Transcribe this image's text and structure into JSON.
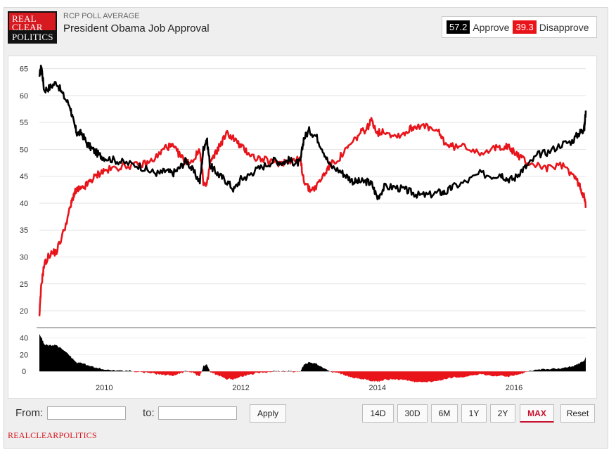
{
  "header": {
    "logo": {
      "line1": "REAL",
      "line2": "CLEAR",
      "line3": "POLITICS"
    },
    "subtitle": "RCP POLL AVERAGE",
    "title": "President Obama Job Approval"
  },
  "legend": {
    "approve_value": "57.2",
    "approve_label": "Approve",
    "disapprove_value": "39.3",
    "disapprove_label": "Disapprove"
  },
  "colors": {
    "approve": "#000000",
    "disapprove": "#e8141a"
  },
  "controls": {
    "from_label": "From:",
    "to_label": "to:",
    "apply_label": "Apply",
    "ranges": [
      "14D",
      "30D",
      "6M",
      "1Y",
      "2Y",
      "MAX"
    ],
    "active_range": "MAX",
    "reset_label": "Reset"
  },
  "footer": {
    "brand": "REALCLEARPOLITICS"
  },
  "chart_data": {
    "type": "line",
    "x_tick_labels": [
      "2010",
      "2012",
      "2014",
      "2016"
    ],
    "x_range": [
      2009.05,
      2017.05
    ],
    "main_panel": {
      "ylim": [
        17,
        66
      ],
      "y_ticks": [
        20,
        25,
        30,
        35,
        40,
        45,
        50,
        55,
        60,
        65
      ],
      "grid": true
    },
    "spread_panel": {
      "ylim": [
        -4,
        43
      ],
      "y_ticks": [
        0,
        20,
        40
      ],
      "type": "area"
    },
    "series": [
      {
        "key": "approve",
        "x": [
          2009.05,
          2009.08,
          2009.12,
          2009.2,
          2009.3,
          2009.4,
          2009.5,
          2009.55,
          2009.6,
          2009.67,
          2009.75,
          2009.83,
          2009.92,
          2010.0,
          2010.15,
          2010.3,
          2010.5,
          2010.65,
          2010.8,
          2010.9,
          2011.0,
          2011.1,
          2011.2,
          2011.3,
          2011.4,
          2011.45,
          2011.5,
          2011.55,
          2011.62,
          2011.7,
          2011.8,
          2011.9,
          2012.0,
          2012.1,
          2012.2,
          2012.35,
          2012.5,
          2012.6,
          2012.7,
          2012.8,
          2012.87,
          2012.92,
          2013.0,
          2013.1,
          2013.2,
          2013.3,
          2013.45,
          2013.55,
          2013.65,
          2013.75,
          2013.85,
          2013.92,
          2014.0,
          2014.1,
          2014.25,
          2014.4,
          2014.5,
          2014.6,
          2014.75,
          2014.9,
          2015.0,
          2015.1,
          2015.3,
          2015.5,
          2015.7,
          2015.8,
          2015.9,
          2016.0,
          2016.1,
          2016.2,
          2016.35,
          2016.5,
          2016.7,
          2016.85,
          2016.95,
          2017.0,
          2017.03,
          2017.05
        ],
        "values": [
          63.5,
          65.5,
          61,
          61.5,
          62.5,
          60,
          58,
          55,
          53,
          53,
          51,
          50,
          49,
          48.5,
          48,
          47.5,
          47,
          46,
          45.5,
          46,
          45.5,
          46.5,
          48,
          46,
          44,
          50,
          52,
          47,
          46,
          45,
          44,
          42.5,
          44.5,
          45,
          46,
          47,
          48,
          47.5,
          48,
          47.5,
          47.5,
          52,
          53.5,
          52.5,
          50,
          47,
          46,
          45,
          44,
          44,
          44,
          43.5,
          41,
          43,
          43,
          42.5,
          42,
          41.5,
          41.5,
          42,
          42,
          43,
          44,
          45.5,
          45,
          45.5,
          44.5,
          44.5,
          46,
          47,
          49,
          49.5,
          51,
          51.5,
          53,
          53.5,
          54,
          57.2
        ]
      },
      {
        "key": "disapprove",
        "x": [
          2009.05,
          2009.08,
          2009.12,
          2009.2,
          2009.3,
          2009.4,
          2009.5,
          2009.55,
          2009.6,
          2009.67,
          2009.75,
          2009.83,
          2009.92,
          2010.0,
          2010.15,
          2010.3,
          2010.5,
          2010.65,
          2010.8,
          2010.9,
          2011.0,
          2011.1,
          2011.2,
          2011.3,
          2011.4,
          2011.45,
          2011.5,
          2011.55,
          2011.62,
          2011.7,
          2011.8,
          2011.9,
          2012.0,
          2012.1,
          2012.2,
          2012.35,
          2012.5,
          2012.6,
          2012.7,
          2012.8,
          2012.87,
          2012.92,
          2013.0,
          2013.1,
          2013.2,
          2013.3,
          2013.45,
          2013.55,
          2013.65,
          2013.75,
          2013.85,
          2013.92,
          2014.0,
          2014.1,
          2014.25,
          2014.4,
          2014.5,
          2014.6,
          2014.75,
          2014.9,
          2015.0,
          2015.1,
          2015.3,
          2015.5,
          2015.7,
          2015.8,
          2015.9,
          2016.0,
          2016.1,
          2016.2,
          2016.35,
          2016.5,
          2016.7,
          2016.85,
          2016.95,
          2017.0,
          2017.03,
          2017.05
        ],
        "values": [
          19,
          25,
          28.5,
          30.5,
          31,
          34.5,
          39,
          41.5,
          42.5,
          42.5,
          43.5,
          44.5,
          45.5,
          46,
          46.5,
          47,
          47,
          47.5,
          49,
          50.5,
          50.5,
          49,
          47.5,
          48,
          50,
          44,
          43,
          47.5,
          49,
          51,
          53,
          52,
          50.5,
          49.5,
          48.5,
          48,
          47.5,
          47.5,
          48,
          48,
          48,
          44.5,
          42.5,
          43,
          45,
          47,
          48.5,
          50,
          51.5,
          53,
          54,
          55.5,
          53,
          53.5,
          52.5,
          53,
          54,
          54.5,
          54,
          53,
          51,
          50.5,
          50.5,
          49.5,
          50,
          50.5,
          50.5,
          49.5,
          48.5,
          47.5,
          47,
          46.5,
          47,
          45.5,
          43.5,
          42,
          41,
          39.3
        ]
      }
    ]
  }
}
